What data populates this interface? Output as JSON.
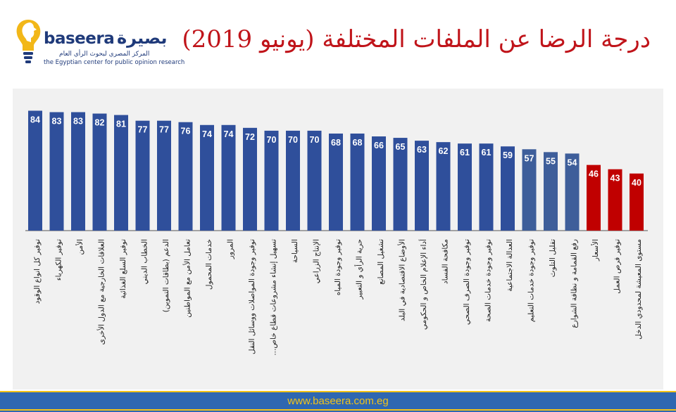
{
  "logo": {
    "word": "baseera",
    "arabic": "بصيرة",
    "tagline_ar": "المركز المصري لبحوث الرأي العام",
    "tagline_en": "the Egyptian center for public opinion research"
  },
  "footer": {
    "url": "www.baseera.com.eg"
  },
  "colors": {
    "positive": "#2f4f9b",
    "mid": "#3e5e9a",
    "negative": "#c00000",
    "title": "#c0141a"
  },
  "chart_data": {
    "type": "bar",
    "title": "درجة الرضا عن الملفات المختلفة (يونيو 2019)",
    "categories": [
      "توفير كل انواع الوقود",
      "توفير الكهرباء",
      "الأمن",
      "العلاقات الخارجية مع الدول الأخرى",
      "توفير السلع الغذائية",
      "الخطاب الديني",
      "الدعم (بطاقات التموين)",
      "تعامل الأمن مع المواطنين",
      "خدمات المحمول",
      "المرور",
      "توفير وجودة المواصلات ووسائل النقل",
      "تسهيل إنشاء مشروعات قطاع خاص...",
      "السياحة",
      "الإنتاج الزراعي",
      "توفير وجودة المياه",
      "حرية الرأي و التعبير",
      "تشغيل المصانع",
      "الأوضاع الاقتصادية في البلد",
      "أداء الإعلام الخاص و الحكومي",
      "مكافحة الفساد",
      "توفير وجودة الصرف الصحي",
      "توفير وجودة خدمات الصحة",
      "العدالة الاجتماعية",
      "توفير وجودة خدمات التعليم",
      "تقليل التلوث",
      "رفع القمامة و نظافة الشوارع",
      "الأسعار",
      "توفير فرص العمل",
      "مستوى المعيشة لمحدودي الدخل"
    ],
    "values": [
      84,
      83,
      83,
      82,
      81,
      77,
      77,
      76,
      74,
      74,
      72,
      70,
      70,
      70,
      68,
      68,
      66,
      65,
      63,
      62,
      61,
      61,
      59,
      57,
      55,
      54,
      46,
      43,
      40
    ],
    "ylim": [
      0,
      100
    ],
    "grid": false,
    "legend": "none"
  }
}
